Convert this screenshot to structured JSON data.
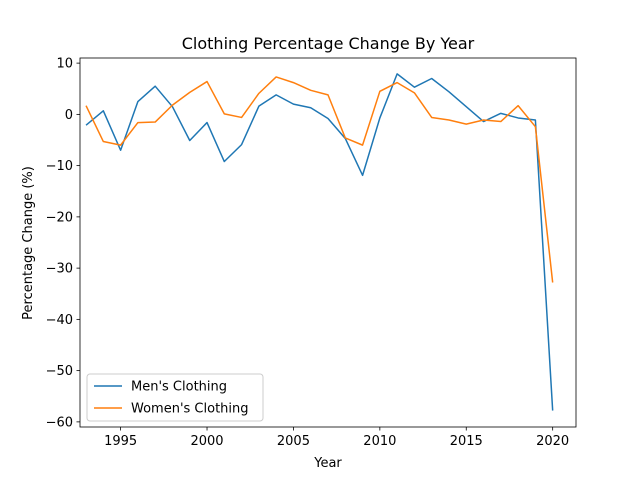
{
  "chart_data": {
    "type": "line",
    "title": "Clothing Percentage Change By Year",
    "xlabel": "Year",
    "ylabel": "Percentage Change (%)",
    "xlim": [
      1992.65,
      2021.35
    ],
    "ylim": [
      -61,
      11
    ],
    "xticks": [
      1995,
      2000,
      2005,
      2010,
      2015,
      2020
    ],
    "yticks": [
      10,
      0,
      -10,
      -20,
      -30,
      -40,
      -50,
      -60
    ],
    "grid": false,
    "legend": "lower-left",
    "x": [
      1993,
      1994,
      1995,
      1996,
      1997,
      1998,
      1999,
      2000,
      2001,
      2002,
      2003,
      2004,
      2005,
      2006,
      2007,
      2008,
      2009,
      2010,
      2011,
      2012,
      2013,
      2014,
      2015,
      2016,
      2017,
      2018,
      2019,
      2020
    ],
    "series": [
      {
        "name": "Men's Clothing",
        "color": "#1f77b4",
        "values": [
          -2.1,
          0.7,
          -7.0,
          2.5,
          5.5,
          1.5,
          -5.1,
          -1.6,
          -9.2,
          -5.9,
          1.6,
          3.8,
          2.0,
          1.3,
          -0.8,
          -4.7,
          -11.9,
          -0.7,
          7.9,
          5.3,
          7.0,
          4.4,
          1.5,
          -1.4,
          0.2,
          -0.7,
          -1.1,
          -57.8
        ]
      },
      {
        "name": "Women's Clothing",
        "color": "#ff7f0e",
        "values": [
          1.7,
          -5.3,
          -6.0,
          -1.6,
          -1.5,
          1.8,
          4.3,
          6.4,
          0.1,
          -0.6,
          4.1,
          7.3,
          6.2,
          4.7,
          3.8,
          -4.6,
          -6.0,
          4.5,
          6.2,
          4.2,
          -0.6,
          -1.1,
          -1.9,
          -1.1,
          -1.4,
          1.7,
          -2.4,
          -32.8
        ]
      }
    ]
  }
}
